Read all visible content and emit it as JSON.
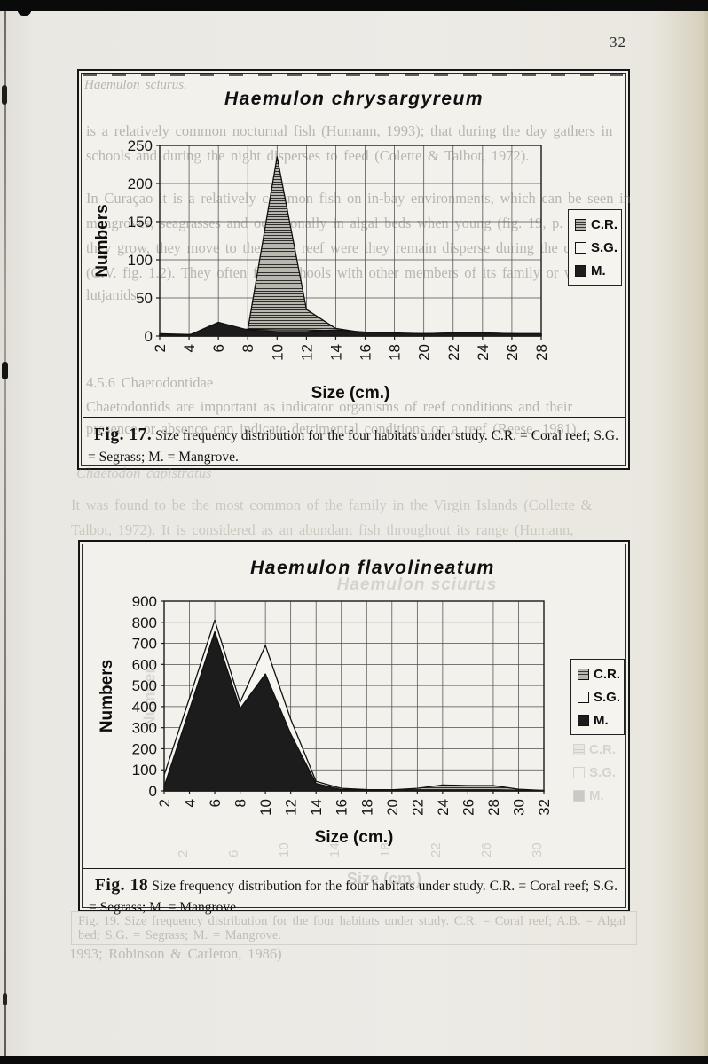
{
  "page": {
    "number": "32"
  },
  "chart_data": [
    {
      "type": "area",
      "title": "Haemulon chrysargyreum",
      "xlabel": "Size (cm.)",
      "ylabel": "Numbers",
      "categories": [
        2,
        4,
        6,
        8,
        10,
        12,
        14,
        16,
        18,
        20,
        22,
        24,
        26,
        28
      ],
      "ylim": [
        0,
        250
      ],
      "ytick_step": 50,
      "grid": true,
      "legend_position": "right",
      "series": [
        {
          "name": "C.R.",
          "style": "hatched-gray",
          "values": [
            2,
            1,
            2,
            8,
            235,
            35,
            10,
            4,
            3,
            3,
            4,
            4,
            3,
            3
          ]
        },
        {
          "name": "S.G.",
          "style": "white",
          "values": [
            3,
            2,
            6,
            9,
            8,
            8,
            7,
            5,
            3,
            3,
            3,
            3,
            3,
            2
          ]
        },
        {
          "name": "M.",
          "style": "black",
          "values": [
            3,
            1,
            18,
            8,
            6,
            6,
            8,
            5,
            4,
            3,
            4,
            4,
            3,
            3
          ]
        }
      ]
    },
    {
      "type": "area",
      "title": "Haemulon flavolineatum",
      "xlabel": "Size (cm.)",
      "ylabel": "Numbers",
      "categories": [
        2,
        4,
        6,
        8,
        10,
        12,
        14,
        16,
        18,
        20,
        22,
        24,
        26,
        28,
        30,
        32
      ],
      "ylim": [
        0,
        900
      ],
      "ytick_step": 100,
      "grid": true,
      "legend_position": "right",
      "series": [
        {
          "name": "C.R.",
          "style": "hatched-gray",
          "values": [
            5,
            5,
            5,
            5,
            5,
            5,
            5,
            3,
            3,
            5,
            12,
            28,
            25,
            25,
            8,
            2
          ]
        },
        {
          "name": "S.G.",
          "style": "white",
          "values": [
            75,
            440,
            810,
            420,
            690,
            340,
            45,
            12,
            6,
            5,
            5,
            5,
            5,
            5,
            3,
            2
          ]
        },
        {
          "name": "M.",
          "style": "black",
          "values": [
            20,
            385,
            755,
            390,
            555,
            270,
            35,
            6,
            4,
            3,
            3,
            3,
            3,
            3,
            2,
            1
          ]
        }
      ]
    }
  ],
  "figure17": {
    "caption_label": "Fig. 17.",
    "caption_text": "Size frequency distribution for the four habitats under study.   C.R. = Coral reef;   S.G. = Segrass;  M. = Mangrove."
  },
  "figure18": {
    "caption_label": "Fig. 18",
    "caption_text": "Size frequency distribution for the four habitats under study.  C.R. = Coral reef;  S.G. = Segrass; M. = Mangrove."
  },
  "ghosts": {
    "page_header_line": "Haemulon sciurus.",
    "fig17_lines": [
      "is a relatively common  nocturnal fish (Humann, 1993); that during the day gathers in",
      "schools and during the night disperses to feed (Colette & Talbot, 1972).",
      "In Curaçao it is a relatively common fish on in-bay environments, which can be seen in",
      "mangroves, seagrasses and occasionally in algal beds when young (fig. 19, p. 33).  As",
      "they grow, they move to the coral reef were they remain disperse during the day",
      "(C.V. fig. 1.2).  They often form schools with other members of its family or with",
      "lutjanids.",
      "4.5.6 Chaetodontidae",
      "Chaetodontids are important as indicator organisms of reef conditions and their",
      "presence or absence can indicate detrimental conditions on a reef (Reese, 1981)."
    ],
    "between_line_1": "Chaetodon capistratus",
    "between_line_2": "It was found to be the most common  of the family in the Virgin Islands (Collette &",
    "between_line_3": "Talbot, 1972). It is considered as an abundant fish throughout its range (Humann,",
    "fig18_title": "Haemulon sciurus",
    "fig18_ylabel": "Numbers",
    "fig18_xlabel": "Size (cm.)",
    "fig18_legend": [
      "C.R.",
      "S.G.",
      "M."
    ],
    "fig18_ticks": [
      "2",
      "6",
      "10",
      "14",
      "18",
      "22",
      "26",
      "30"
    ],
    "fig19_caption_line1": "Fig. 19. Size frequency distribution for the four habitats under study.   C.R. = Coral reef;   A.B. = Algal",
    "fig19_caption_line2": "bed;  S.G. = Segrass;  M. = Mangrove.",
    "bottom_line": "1993;  Robinson & Carleton, 1986)"
  },
  "colors": {
    "paper": "#edebe6",
    "figure_bg": "#f2f1ec",
    "ink": "#151515",
    "hatch_gray": "#b9b6ae",
    "series_black": "#1c1c1c",
    "series_white": "#f6f5f0",
    "ghost_text": "#7e7c72"
  }
}
